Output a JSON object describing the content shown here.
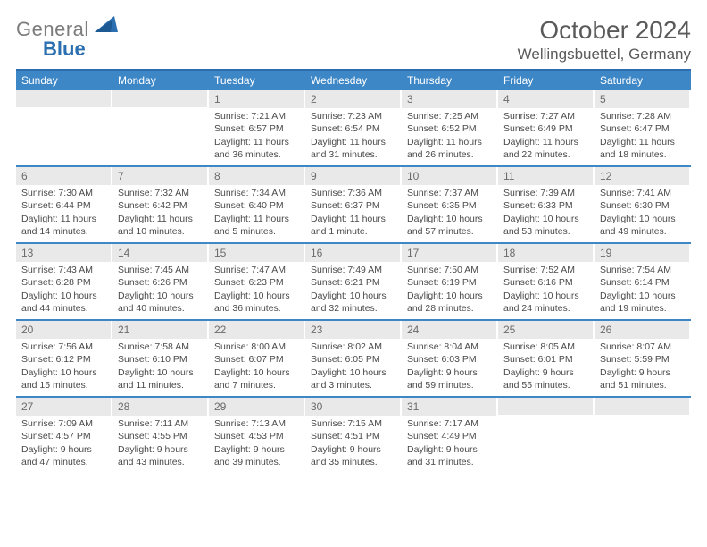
{
  "logo": {
    "text1": "General",
    "text2": "Blue"
  },
  "title": "October 2024",
  "location": "Wellingsbuettel, Germany",
  "colors": {
    "header_bg": "#3d87c7",
    "header_border": "#2b6fb0",
    "band_bg": "#e9e9e9",
    "text": "#4a4a4a",
    "logo_gray": "#7c7c7c",
    "logo_blue": "#2b6fb0"
  },
  "weekdays": [
    "Sunday",
    "Monday",
    "Tuesday",
    "Wednesday",
    "Thursday",
    "Friday",
    "Saturday"
  ],
  "weeks": [
    [
      {
        "n": "",
        "sr": "",
        "ss": "",
        "dl": ""
      },
      {
        "n": "",
        "sr": "",
        "ss": "",
        "dl": ""
      },
      {
        "n": "1",
        "sr": "Sunrise: 7:21 AM",
        "ss": "Sunset: 6:57 PM",
        "dl": "Daylight: 11 hours and 36 minutes."
      },
      {
        "n": "2",
        "sr": "Sunrise: 7:23 AM",
        "ss": "Sunset: 6:54 PM",
        "dl": "Daylight: 11 hours and 31 minutes."
      },
      {
        "n": "3",
        "sr": "Sunrise: 7:25 AM",
        "ss": "Sunset: 6:52 PM",
        "dl": "Daylight: 11 hours and 26 minutes."
      },
      {
        "n": "4",
        "sr": "Sunrise: 7:27 AM",
        "ss": "Sunset: 6:49 PM",
        "dl": "Daylight: 11 hours and 22 minutes."
      },
      {
        "n": "5",
        "sr": "Sunrise: 7:28 AM",
        "ss": "Sunset: 6:47 PM",
        "dl": "Daylight: 11 hours and 18 minutes."
      }
    ],
    [
      {
        "n": "6",
        "sr": "Sunrise: 7:30 AM",
        "ss": "Sunset: 6:44 PM",
        "dl": "Daylight: 11 hours and 14 minutes."
      },
      {
        "n": "7",
        "sr": "Sunrise: 7:32 AM",
        "ss": "Sunset: 6:42 PM",
        "dl": "Daylight: 11 hours and 10 minutes."
      },
      {
        "n": "8",
        "sr": "Sunrise: 7:34 AM",
        "ss": "Sunset: 6:40 PM",
        "dl": "Daylight: 11 hours and 5 minutes."
      },
      {
        "n": "9",
        "sr": "Sunrise: 7:36 AM",
        "ss": "Sunset: 6:37 PM",
        "dl": "Daylight: 11 hours and 1 minute."
      },
      {
        "n": "10",
        "sr": "Sunrise: 7:37 AM",
        "ss": "Sunset: 6:35 PM",
        "dl": "Daylight: 10 hours and 57 minutes."
      },
      {
        "n": "11",
        "sr": "Sunrise: 7:39 AM",
        "ss": "Sunset: 6:33 PM",
        "dl": "Daylight: 10 hours and 53 minutes."
      },
      {
        "n": "12",
        "sr": "Sunrise: 7:41 AM",
        "ss": "Sunset: 6:30 PM",
        "dl": "Daylight: 10 hours and 49 minutes."
      }
    ],
    [
      {
        "n": "13",
        "sr": "Sunrise: 7:43 AM",
        "ss": "Sunset: 6:28 PM",
        "dl": "Daylight: 10 hours and 44 minutes."
      },
      {
        "n": "14",
        "sr": "Sunrise: 7:45 AM",
        "ss": "Sunset: 6:26 PM",
        "dl": "Daylight: 10 hours and 40 minutes."
      },
      {
        "n": "15",
        "sr": "Sunrise: 7:47 AM",
        "ss": "Sunset: 6:23 PM",
        "dl": "Daylight: 10 hours and 36 minutes."
      },
      {
        "n": "16",
        "sr": "Sunrise: 7:49 AM",
        "ss": "Sunset: 6:21 PM",
        "dl": "Daylight: 10 hours and 32 minutes."
      },
      {
        "n": "17",
        "sr": "Sunrise: 7:50 AM",
        "ss": "Sunset: 6:19 PM",
        "dl": "Daylight: 10 hours and 28 minutes."
      },
      {
        "n": "18",
        "sr": "Sunrise: 7:52 AM",
        "ss": "Sunset: 6:16 PM",
        "dl": "Daylight: 10 hours and 24 minutes."
      },
      {
        "n": "19",
        "sr": "Sunrise: 7:54 AM",
        "ss": "Sunset: 6:14 PM",
        "dl": "Daylight: 10 hours and 19 minutes."
      }
    ],
    [
      {
        "n": "20",
        "sr": "Sunrise: 7:56 AM",
        "ss": "Sunset: 6:12 PM",
        "dl": "Daylight: 10 hours and 15 minutes."
      },
      {
        "n": "21",
        "sr": "Sunrise: 7:58 AM",
        "ss": "Sunset: 6:10 PM",
        "dl": "Daylight: 10 hours and 11 minutes."
      },
      {
        "n": "22",
        "sr": "Sunrise: 8:00 AM",
        "ss": "Sunset: 6:07 PM",
        "dl": "Daylight: 10 hours and 7 minutes."
      },
      {
        "n": "23",
        "sr": "Sunrise: 8:02 AM",
        "ss": "Sunset: 6:05 PM",
        "dl": "Daylight: 10 hours and 3 minutes."
      },
      {
        "n": "24",
        "sr": "Sunrise: 8:04 AM",
        "ss": "Sunset: 6:03 PM",
        "dl": "Daylight: 9 hours and 59 minutes."
      },
      {
        "n": "25",
        "sr": "Sunrise: 8:05 AM",
        "ss": "Sunset: 6:01 PM",
        "dl": "Daylight: 9 hours and 55 minutes."
      },
      {
        "n": "26",
        "sr": "Sunrise: 8:07 AM",
        "ss": "Sunset: 5:59 PM",
        "dl": "Daylight: 9 hours and 51 minutes."
      }
    ],
    [
      {
        "n": "27",
        "sr": "Sunrise: 7:09 AM",
        "ss": "Sunset: 4:57 PM",
        "dl": "Daylight: 9 hours and 47 minutes."
      },
      {
        "n": "28",
        "sr": "Sunrise: 7:11 AM",
        "ss": "Sunset: 4:55 PM",
        "dl": "Daylight: 9 hours and 43 minutes."
      },
      {
        "n": "29",
        "sr": "Sunrise: 7:13 AM",
        "ss": "Sunset: 4:53 PM",
        "dl": "Daylight: 9 hours and 39 minutes."
      },
      {
        "n": "30",
        "sr": "Sunrise: 7:15 AM",
        "ss": "Sunset: 4:51 PM",
        "dl": "Daylight: 9 hours and 35 minutes."
      },
      {
        "n": "31",
        "sr": "Sunrise: 7:17 AM",
        "ss": "Sunset: 4:49 PM",
        "dl": "Daylight: 9 hours and 31 minutes."
      },
      {
        "n": "",
        "sr": "",
        "ss": "",
        "dl": ""
      },
      {
        "n": "",
        "sr": "",
        "ss": "",
        "dl": ""
      }
    ]
  ]
}
